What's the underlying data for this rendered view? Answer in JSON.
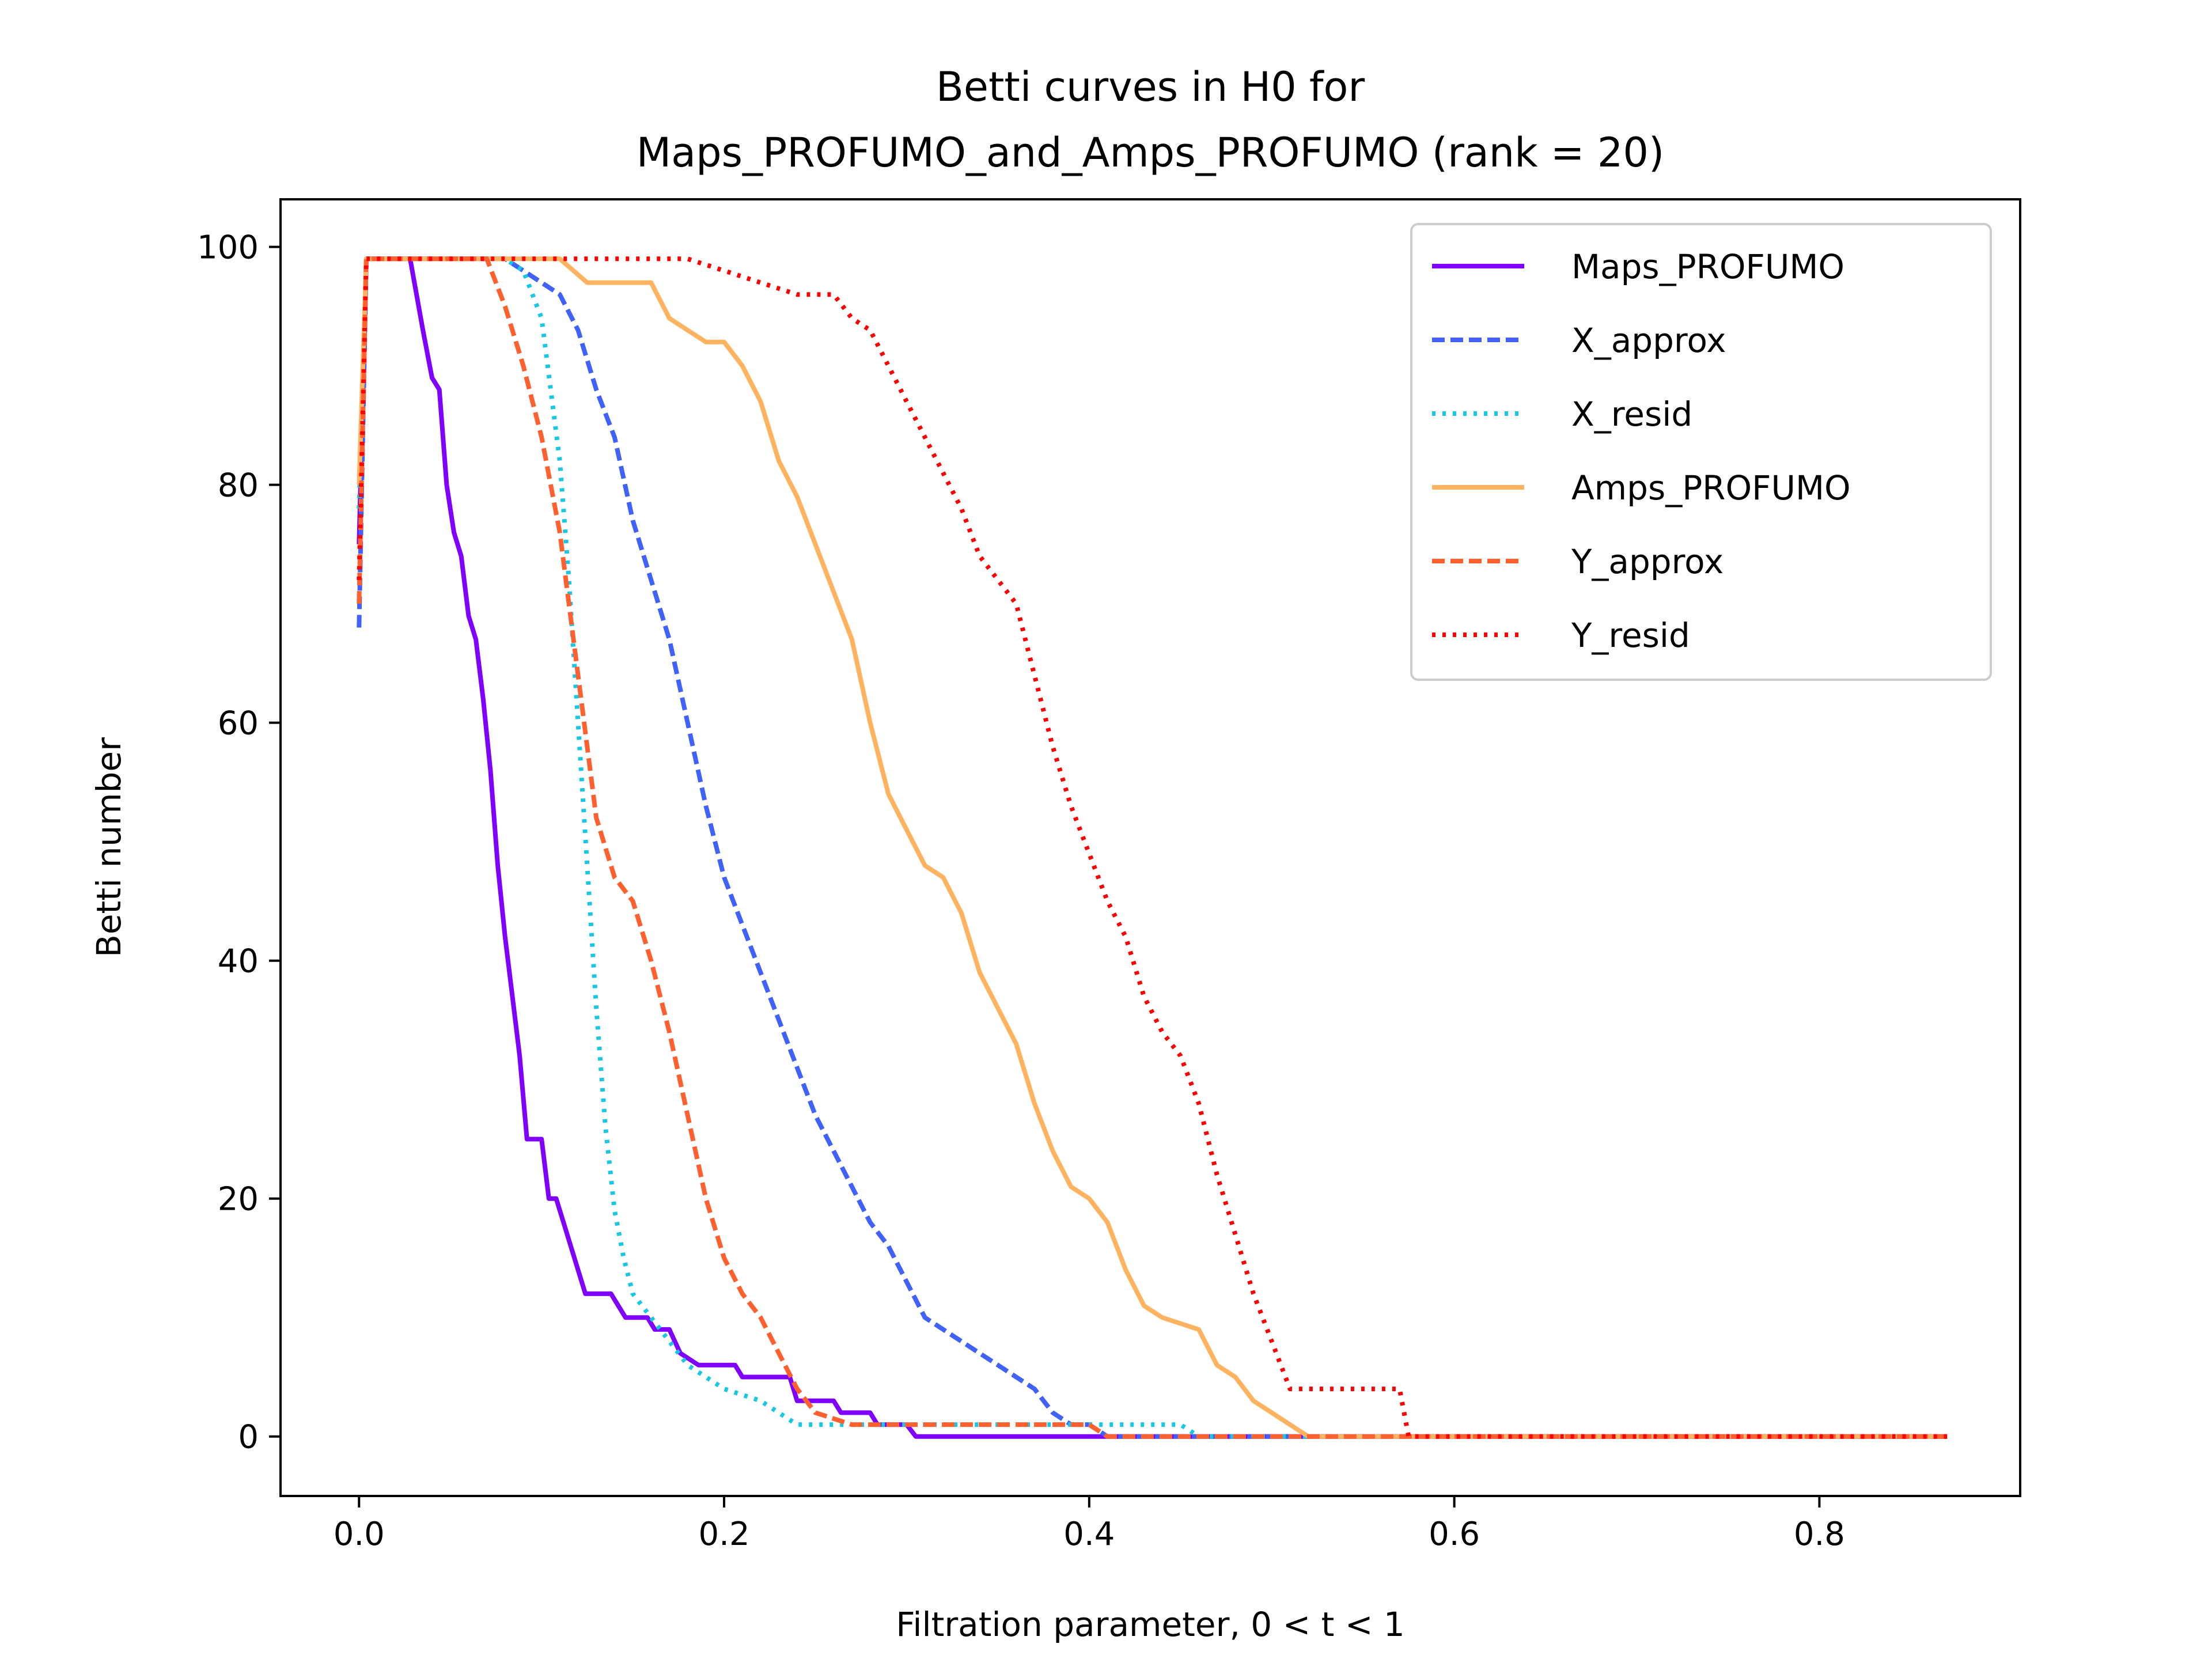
{
  "chart_data": {
    "type": "line",
    "title_lines": [
      "Betti curves in H0 for",
      "Maps_PROFUMO_and_Amps_PROFUMO (rank = 20)"
    ],
    "xlabel": "Filtration parameter, 0 < t < 1",
    "ylabel": "Betti number",
    "xlim": [
      -0.043,
      0.91
    ],
    "ylim": [
      -5,
      104
    ],
    "xticks": [
      0.0,
      0.2,
      0.4,
      0.6,
      0.8
    ],
    "xtick_labels": [
      "0.0",
      "0.2",
      "0.4",
      "0.6",
      "0.8"
    ],
    "yticks": [
      0,
      20,
      40,
      60,
      80,
      100
    ],
    "ytick_labels": [
      "0",
      "20",
      "40",
      "60",
      "80",
      "100"
    ],
    "grid": false,
    "legend_position": "top-right",
    "series": [
      {
        "name": "Maps_PROFUMO",
        "color": "#8000ff",
        "style": "solid",
        "points": [
          [
            0.0,
            75
          ],
          [
            0.004,
            99
          ],
          [
            0.028,
            99
          ],
          [
            0.035,
            93
          ],
          [
            0.04,
            89
          ],
          [
            0.044,
            88
          ],
          [
            0.048,
            80
          ],
          [
            0.052,
            76
          ],
          [
            0.056,
            74
          ],
          [
            0.06,
            69
          ],
          [
            0.064,
            67
          ],
          [
            0.068,
            62
          ],
          [
            0.072,
            56
          ],
          [
            0.076,
            48
          ],
          [
            0.08,
            42
          ],
          [
            0.084,
            37
          ],
          [
            0.088,
            32
          ],
          [
            0.092,
            25
          ],
          [
            0.1,
            25
          ],
          [
            0.104,
            20
          ],
          [
            0.108,
            20
          ],
          [
            0.112,
            18
          ],
          [
            0.12,
            14
          ],
          [
            0.124,
            12
          ],
          [
            0.138,
            12
          ],
          [
            0.146,
            10
          ],
          [
            0.158,
            10
          ],
          [
            0.162,
            9
          ],
          [
            0.17,
            9
          ],
          [
            0.176,
            7
          ],
          [
            0.186,
            6
          ],
          [
            0.206,
            6
          ],
          [
            0.21,
            5
          ],
          [
            0.236,
            5
          ],
          [
            0.24,
            3
          ],
          [
            0.26,
            3
          ],
          [
            0.264,
            2
          ],
          [
            0.28,
            2
          ],
          [
            0.284,
            1
          ],
          [
            0.3,
            1
          ],
          [
            0.305,
            0
          ],
          [
            0.87,
            0
          ]
        ]
      },
      {
        "name": "X_approx",
        "color": "#4062fa",
        "style": "dashed",
        "points": [
          [
            0.0,
            68
          ],
          [
            0.004,
            99
          ],
          [
            0.08,
            99
          ],
          [
            0.09,
            98
          ],
          [
            0.1,
            97
          ],
          [
            0.11,
            96
          ],
          [
            0.12,
            93
          ],
          [
            0.13,
            88
          ],
          [
            0.14,
            84
          ],
          [
            0.15,
            77
          ],
          [
            0.16,
            72
          ],
          [
            0.17,
            67
          ],
          [
            0.18,
            60
          ],
          [
            0.19,
            53
          ],
          [
            0.2,
            47
          ],
          [
            0.21,
            43
          ],
          [
            0.22,
            39
          ],
          [
            0.23,
            35
          ],
          [
            0.24,
            31
          ],
          [
            0.25,
            27
          ],
          [
            0.26,
            24
          ],
          [
            0.27,
            21
          ],
          [
            0.28,
            18
          ],
          [
            0.29,
            16
          ],
          [
            0.3,
            13
          ],
          [
            0.31,
            10
          ],
          [
            0.32,
            9
          ],
          [
            0.33,
            8
          ],
          [
            0.34,
            7
          ],
          [
            0.35,
            6
          ],
          [
            0.36,
            5
          ],
          [
            0.37,
            4
          ],
          [
            0.38,
            2
          ],
          [
            0.39,
            1
          ],
          [
            0.4,
            1
          ],
          [
            0.41,
            0
          ],
          [
            0.87,
            0
          ]
        ]
      },
      {
        "name": "X_resid",
        "color": "#1ac7e3",
        "style": "dotted",
        "points": [
          [
            0.0,
            78
          ],
          [
            0.004,
            99
          ],
          [
            0.08,
            99
          ],
          [
            0.09,
            98
          ],
          [
            0.1,
            94
          ],
          [
            0.105,
            88
          ],
          [
            0.11,
            82
          ],
          [
            0.115,
            72
          ],
          [
            0.12,
            60
          ],
          [
            0.125,
            48
          ],
          [
            0.13,
            36
          ],
          [
            0.135,
            26
          ],
          [
            0.14,
            19
          ],
          [
            0.145,
            15
          ],
          [
            0.15,
            12
          ],
          [
            0.16,
            10
          ],
          [
            0.17,
            8
          ],
          [
            0.18,
            6
          ],
          [
            0.19,
            5
          ],
          [
            0.2,
            4
          ],
          [
            0.22,
            3
          ],
          [
            0.24,
            1
          ],
          [
            0.26,
            1
          ],
          [
            0.3,
            1
          ],
          [
            0.35,
            1
          ],
          [
            0.4,
            1
          ],
          [
            0.45,
            1
          ],
          [
            0.46,
            0
          ],
          [
            0.87,
            0
          ]
        ]
      },
      {
        "name": "Amps_PROFUMO",
        "color": "#ffb360",
        "style": "solid",
        "points": [
          [
            0.0,
            80
          ],
          [
            0.004,
            99
          ],
          [
            0.11,
            99
          ],
          [
            0.125,
            97
          ],
          [
            0.16,
            97
          ],
          [
            0.17,
            94
          ],
          [
            0.18,
            93
          ],
          [
            0.19,
            92
          ],
          [
            0.2,
            92
          ],
          [
            0.21,
            90
          ],
          [
            0.22,
            87
          ],
          [
            0.23,
            82
          ],
          [
            0.24,
            79
          ],
          [
            0.25,
            75
          ],
          [
            0.26,
            71
          ],
          [
            0.27,
            67
          ],
          [
            0.28,
            60
          ],
          [
            0.29,
            54
          ],
          [
            0.3,
            51
          ],
          [
            0.31,
            48
          ],
          [
            0.32,
            47
          ],
          [
            0.33,
            44
          ],
          [
            0.34,
            39
          ],
          [
            0.35,
            36
          ],
          [
            0.36,
            33
          ],
          [
            0.37,
            28
          ],
          [
            0.38,
            24
          ],
          [
            0.39,
            21
          ],
          [
            0.4,
            20
          ],
          [
            0.41,
            18
          ],
          [
            0.42,
            14
          ],
          [
            0.43,
            11
          ],
          [
            0.44,
            10
          ],
          [
            0.46,
            9
          ],
          [
            0.47,
            6
          ],
          [
            0.48,
            5
          ],
          [
            0.49,
            3
          ],
          [
            0.5,
            2
          ],
          [
            0.51,
            1
          ],
          [
            0.52,
            0
          ],
          [
            0.87,
            0
          ]
        ]
      },
      {
        "name": "Y_approx",
        "color": "#ff6030",
        "style": "dashed",
        "points": [
          [
            0.0,
            70
          ],
          [
            0.004,
            99
          ],
          [
            0.07,
            99
          ],
          [
            0.08,
            95
          ],
          [
            0.09,
            90
          ],
          [
            0.1,
            84
          ],
          [
            0.11,
            76
          ],
          [
            0.12,
            64
          ],
          [
            0.13,
            52
          ],
          [
            0.14,
            47
          ],
          [
            0.15,
            45
          ],
          [
            0.16,
            40
          ],
          [
            0.17,
            34
          ],
          [
            0.18,
            27
          ],
          [
            0.19,
            20
          ],
          [
            0.2,
            15
          ],
          [
            0.21,
            12
          ],
          [
            0.22,
            10
          ],
          [
            0.23,
            7
          ],
          [
            0.24,
            4
          ],
          [
            0.25,
            2
          ],
          [
            0.27,
            1
          ],
          [
            0.4,
            1
          ],
          [
            0.41,
            0
          ],
          [
            0.87,
            0
          ]
        ]
      },
      {
        "name": "Y_resid",
        "color": "#ff0000",
        "style": "dotted",
        "points": [
          [
            0.0,
            72
          ],
          [
            0.004,
            99
          ],
          [
            0.18,
            99
          ],
          [
            0.2,
            98
          ],
          [
            0.22,
            97
          ],
          [
            0.24,
            96
          ],
          [
            0.26,
            96
          ],
          [
            0.27,
            94
          ],
          [
            0.28,
            93
          ],
          [
            0.29,
            90
          ],
          [
            0.3,
            87
          ],
          [
            0.31,
            84
          ],
          [
            0.32,
            81
          ],
          [
            0.33,
            78
          ],
          [
            0.34,
            74
          ],
          [
            0.35,
            72
          ],
          [
            0.36,
            70
          ],
          [
            0.37,
            64
          ],
          [
            0.38,
            58
          ],
          [
            0.39,
            53
          ],
          [
            0.4,
            49
          ],
          [
            0.41,
            45
          ],
          [
            0.42,
            42
          ],
          [
            0.43,
            37
          ],
          [
            0.44,
            34
          ],
          [
            0.45,
            32
          ],
          [
            0.46,
            28
          ],
          [
            0.47,
            22
          ],
          [
            0.48,
            17
          ],
          [
            0.49,
            12
          ],
          [
            0.5,
            8
          ],
          [
            0.51,
            4
          ],
          [
            0.52,
            4
          ],
          [
            0.57,
            4
          ],
          [
            0.575,
            0
          ],
          [
            0.87,
            0
          ]
        ]
      }
    ]
  }
}
